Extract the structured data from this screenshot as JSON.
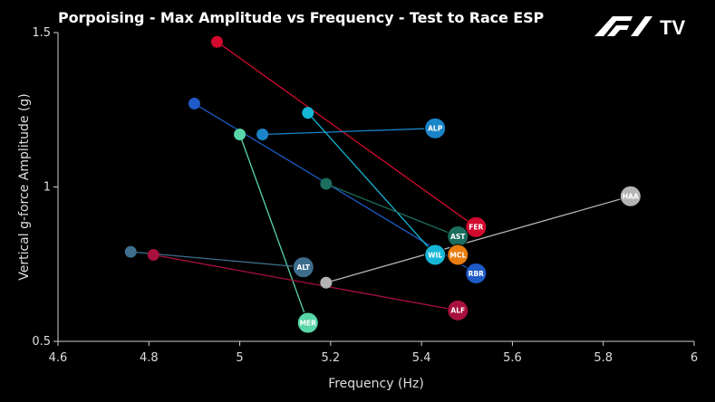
{
  "chart_data": {
    "type": "scatter",
    "title": "Porpoising - Max Amplitude vs Frequency - Test to Race ESP",
    "xlabel": "Frequency (Hz)",
    "ylabel": "Vertical g-force Amplitude (g)",
    "xlim": [
      4.6,
      6.0
    ],
    "ylim": [
      0.5,
      1.5
    ],
    "x_ticks": [
      "4.6",
      "4.8",
      "5",
      "5.2",
      "5.4",
      "5.6",
      "5.8",
      "6"
    ],
    "y_ticks": [
      "0.5",
      "1",
      "1.5"
    ],
    "grid": false,
    "series": [
      {
        "name": "FER",
        "color": "#d20a2e",
        "start": {
          "x": 4.95,
          "y": 1.47
        },
        "end": {
          "x": 5.52,
          "y": 0.87
        }
      },
      {
        "name": "ALP",
        "color": "#1a84c8",
        "start": {
          "x": 5.05,
          "y": 1.17
        },
        "end": {
          "x": 5.43,
          "y": 1.19
        }
      },
      {
        "name": "RBR",
        "color": "#1e5bc6",
        "start": {
          "x": 4.9,
          "y": 1.27
        },
        "end": {
          "x": 5.52,
          "y": 0.72
        }
      },
      {
        "name": "WIL",
        "color": "#16b7d6",
        "start": {
          "x": 5.15,
          "y": 1.24
        },
        "end": {
          "x": 5.43,
          "y": 0.78
        }
      },
      {
        "name": "MER",
        "color": "#58d6a8",
        "start": {
          "x": 5.0,
          "y": 1.17
        },
        "end": {
          "x": 5.15,
          "y": 0.56
        }
      },
      {
        "name": "AST",
        "color": "#1c6e5e",
        "start": {
          "x": 5.19,
          "y": 1.01
        },
        "end": {
          "x": 5.48,
          "y": 0.84
        }
      },
      {
        "name": "ALT",
        "color": "#3e6e8e",
        "start": {
          "x": 4.76,
          "y": 0.79
        },
        "end": {
          "x": 5.14,
          "y": 0.74
        }
      },
      {
        "name": "ALF",
        "color": "#a8113d",
        "start": {
          "x": 4.81,
          "y": 0.78
        },
        "end": {
          "x": 5.48,
          "y": 0.6
        }
      },
      {
        "name": "HAA",
        "color": "#b4b4b4",
        "start": {
          "x": 5.19,
          "y": 0.69
        },
        "end": {
          "x": 5.86,
          "y": 0.97
        }
      },
      {
        "name": "MCL",
        "color": "#e87d10",
        "start": null,
        "end": {
          "x": 5.48,
          "y": 0.78
        }
      }
    ]
  },
  "brand": {
    "logo_text": "F1 TV"
  }
}
